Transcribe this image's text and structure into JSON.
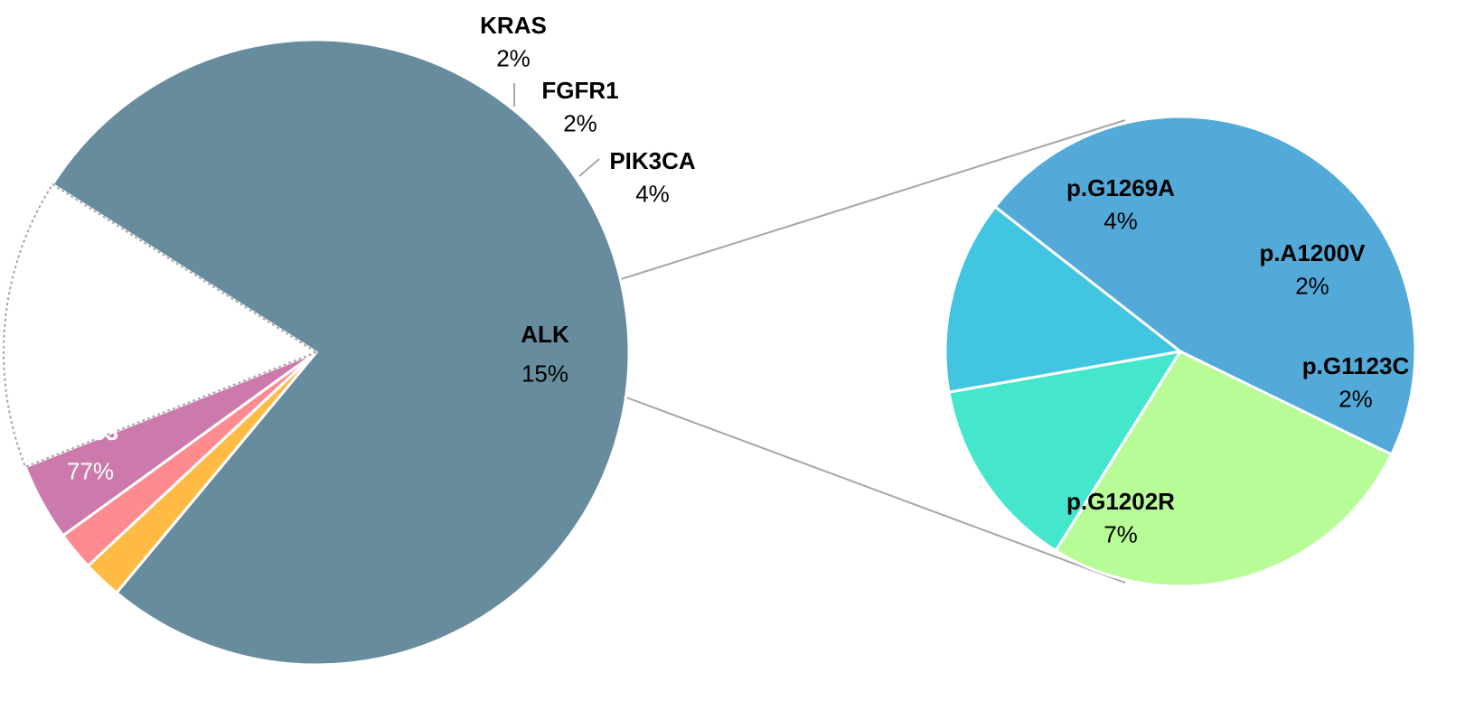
{
  "chart_data": [
    {
      "type": "pie",
      "title": "",
      "slices": [
        {
          "label": "TP53",
          "value": 77,
          "text": "77%",
          "color": "#678c9e"
        },
        {
          "label": "KRAS",
          "value": 2,
          "text": "2%",
          "color": "#ffbb44"
        },
        {
          "label": "FGFR1",
          "value": 2,
          "text": "2%",
          "color": "#ff8b90"
        },
        {
          "label": "PIK3CA",
          "value": 4,
          "text": "4%",
          "color": "#cc7aab"
        },
        {
          "label": "ALK",
          "value": 15,
          "text": "15%",
          "color": "#ffffff",
          "exploded_into_secondary_pie": true
        }
      ]
    },
    {
      "type": "pie",
      "title": "",
      "parent": "ALK",
      "slices": [
        {
          "label": "p.G1269A",
          "value": 4,
          "text": "4%",
          "color": "#b8fc98"
        },
        {
          "label": "p.A1200V",
          "value": 2,
          "text": "2%",
          "color": "#44e7cc"
        },
        {
          "label": "p.G1123C",
          "value": 2,
          "text": "2%",
          "color": "#41c5e1"
        },
        {
          "label": "p.G1202R",
          "value": 7,
          "text": "7%",
          "color": "#53aad9"
        }
      ]
    }
  ]
}
